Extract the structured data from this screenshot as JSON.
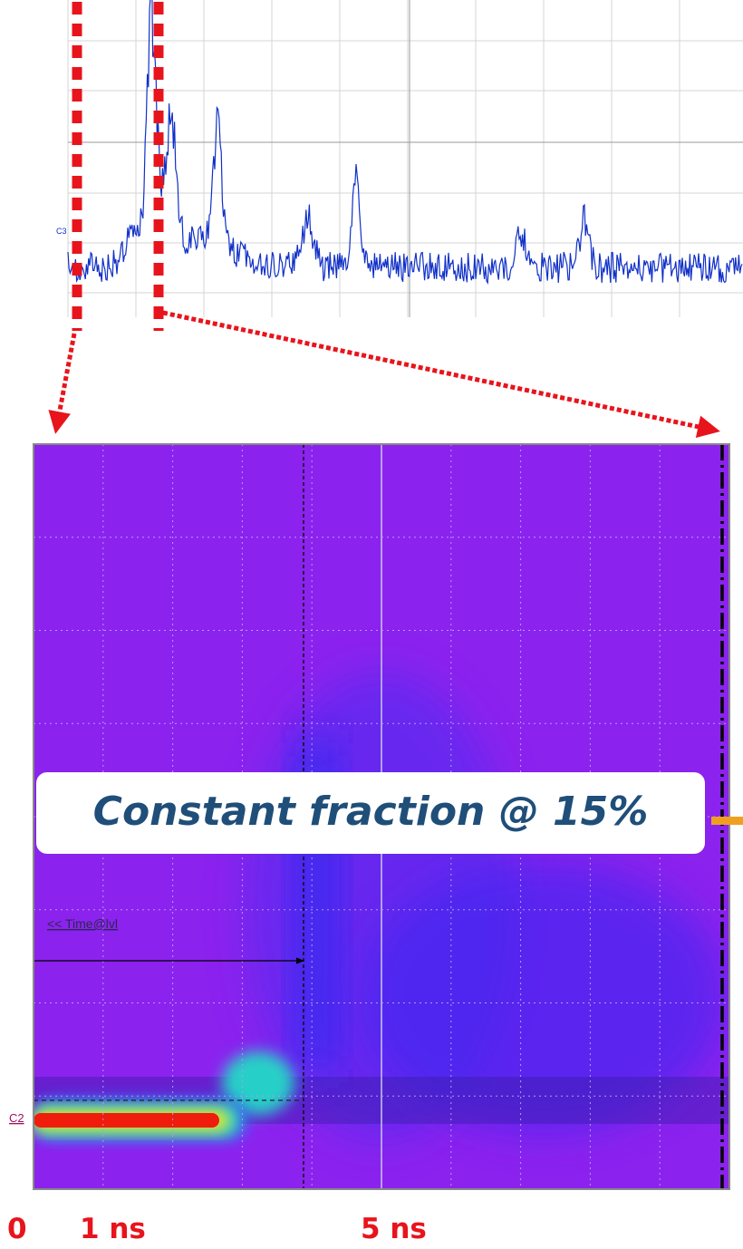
{
  "top_scope": {
    "channel_label": "C3"
  },
  "bottom_scope": {
    "channel_label": "C2",
    "cursor_label": "<< Time@lvl"
  },
  "callout": "Constant fraction @ 15%",
  "time_axis": {
    "labels": [
      "0",
      "1 ns",
      "5 ns"
    ]
  }
}
